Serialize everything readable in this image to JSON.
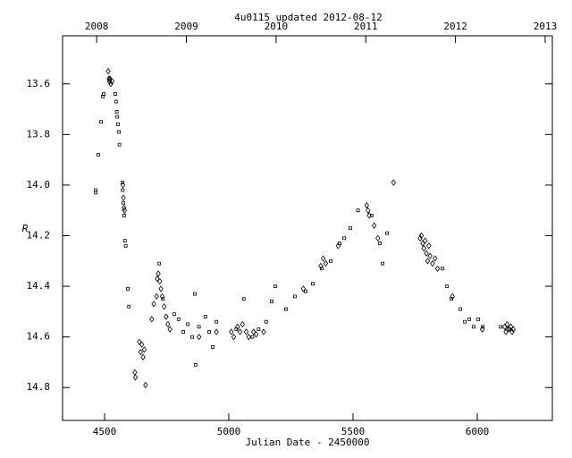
{
  "chart_data": {
    "type": "scatter",
    "title": "4u0115   updated 2012-08-12",
    "x_label": "Julian Date - 2450000",
    "y_label": "R",
    "xlim": [
      4331,
      6302
    ],
    "ylim": [
      14.93,
      13.41
    ],
    "xticks": [
      4500,
      5000,
      5500,
      6000
    ],
    "yticks": [
      13.6,
      13.8,
      {
        "value": 14,
        "label": "14.0"
      },
      14.2,
      14.4,
      14.6,
      14.8
    ],
    "x2lim": [
      2007.62,
      2013.08
    ],
    "x2ticks": [
      2008,
      2009,
      2010,
      2011,
      2012,
      2013
    ],
    "grid": false,
    "series": [
      {
        "marker": "square",
        "color": "#000000",
        "x": [
          4464,
          4465,
          4475,
          4486,
          4493,
          4497,
          4543,
          4546,
          4549,
          4551,
          4554,
          4558,
          4560,
          4572,
          4573,
          4576,
          4579,
          4582,
          4585,
          4594,
          4598,
          4720,
          4735,
          4780,
          4798,
          4817,
          4835,
          4853,
          4863,
          4866,
          4880,
          4906,
          4921,
          4935,
          4950,
          5030,
          5060,
          5095,
          5120,
          5150,
          5173,
          5187,
          5230,
          5266,
          5309,
          5338,
          5374,
          5410,
          5446,
          5464,
          5489,
          5520,
          5575,
          5608,
          5619,
          5637,
          5860,
          5878,
          5896,
          5932,
          5950,
          5968,
          5986,
          6004,
          6022,
          6094,
          6129
        ],
        "values": [
          14.02,
          14.03,
          13.88,
          13.75,
          13.65,
          13.64,
          13.64,
          13.67,
          13.71,
          13.73,
          13.76,
          13.79,
          13.84,
          13.99,
          14.02,
          14.07,
          14.12,
          14.22,
          14.24,
          14.41,
          14.48,
          14.31,
          14.45,
          14.51,
          14.53,
          14.58,
          14.55,
          14.6,
          14.43,
          14.71,
          14.56,
          14.52,
          14.58,
          14.64,
          14.54,
          14.57,
          14.45,
          14.6,
          14.57,
          14.54,
          14.46,
          14.4,
          14.49,
          14.44,
          14.42,
          14.39,
          14.33,
          14.3,
          14.23,
          14.21,
          14.17,
          14.1,
          14.12,
          14.23,
          14.31,
          14.19,
          14.33,
          14.4,
          14.45,
          14.49,
          14.54,
          14.53,
          14.56,
          14.53,
          14.56,
          14.56,
          14.57
        ]
      },
      {
        "marker": "diamond",
        "color": "#000000",
        "x": [
          4515,
          4518,
          4520,
          4522,
          4525,
          4530,
          4574,
          4576,
          4578,
          4580,
          4622,
          4624,
          4640,
          4645,
          4650,
          4655,
          4660,
          4665,
          4690,
          4698,
          4709,
          4712,
          4716,
          4722,
          4727,
          4732,
          4740,
          4748,
          4755,
          4763,
          4880,
          4950,
          5010,
          5020,
          5035,
          5045,
          5055,
          5070,
          5080,
          5100,
          5110,
          5140,
          5300,
          5370,
          5380,
          5390,
          5440,
          5555,
          5560,
          5565,
          5585,
          5600,
          5663,
          5770,
          5775,
          5780,
          5785,
          5790,
          5795,
          5800,
          5805,
          5810,
          5820,
          5830,
          5840,
          5900,
          6020,
          6110,
          6115,
          6120,
          6125,
          6135,
          6140,
          6145
        ],
        "values": [
          13.55,
          13.58,
          13.59,
          13.58,
          13.6,
          13.59,
          14.0,
          14.05,
          14.09,
          14.1,
          14.74,
          14.76,
          14.62,
          14.66,
          14.63,
          14.68,
          14.65,
          14.79,
          14.53,
          14.47,
          14.44,
          14.37,
          14.35,
          14.38,
          14.41,
          14.44,
          14.48,
          14.52,
          14.55,
          14.57,
          14.6,
          14.58,
          14.58,
          14.6,
          14.56,
          14.58,
          14.55,
          14.58,
          14.6,
          14.58,
          14.59,
          14.58,
          14.41,
          14.32,
          14.29,
          14.31,
          14.24,
          14.08,
          14.1,
          14.12,
          14.16,
          14.21,
          13.99,
          14.21,
          14.2,
          14.23,
          14.25,
          14.22,
          14.27,
          14.3,
          14.24,
          14.28,
          14.31,
          14.29,
          14.33,
          14.44,
          14.57,
          14.56,
          14.58,
          14.55,
          14.57,
          14.56,
          14.58,
          14.57
        ]
      }
    ]
  }
}
